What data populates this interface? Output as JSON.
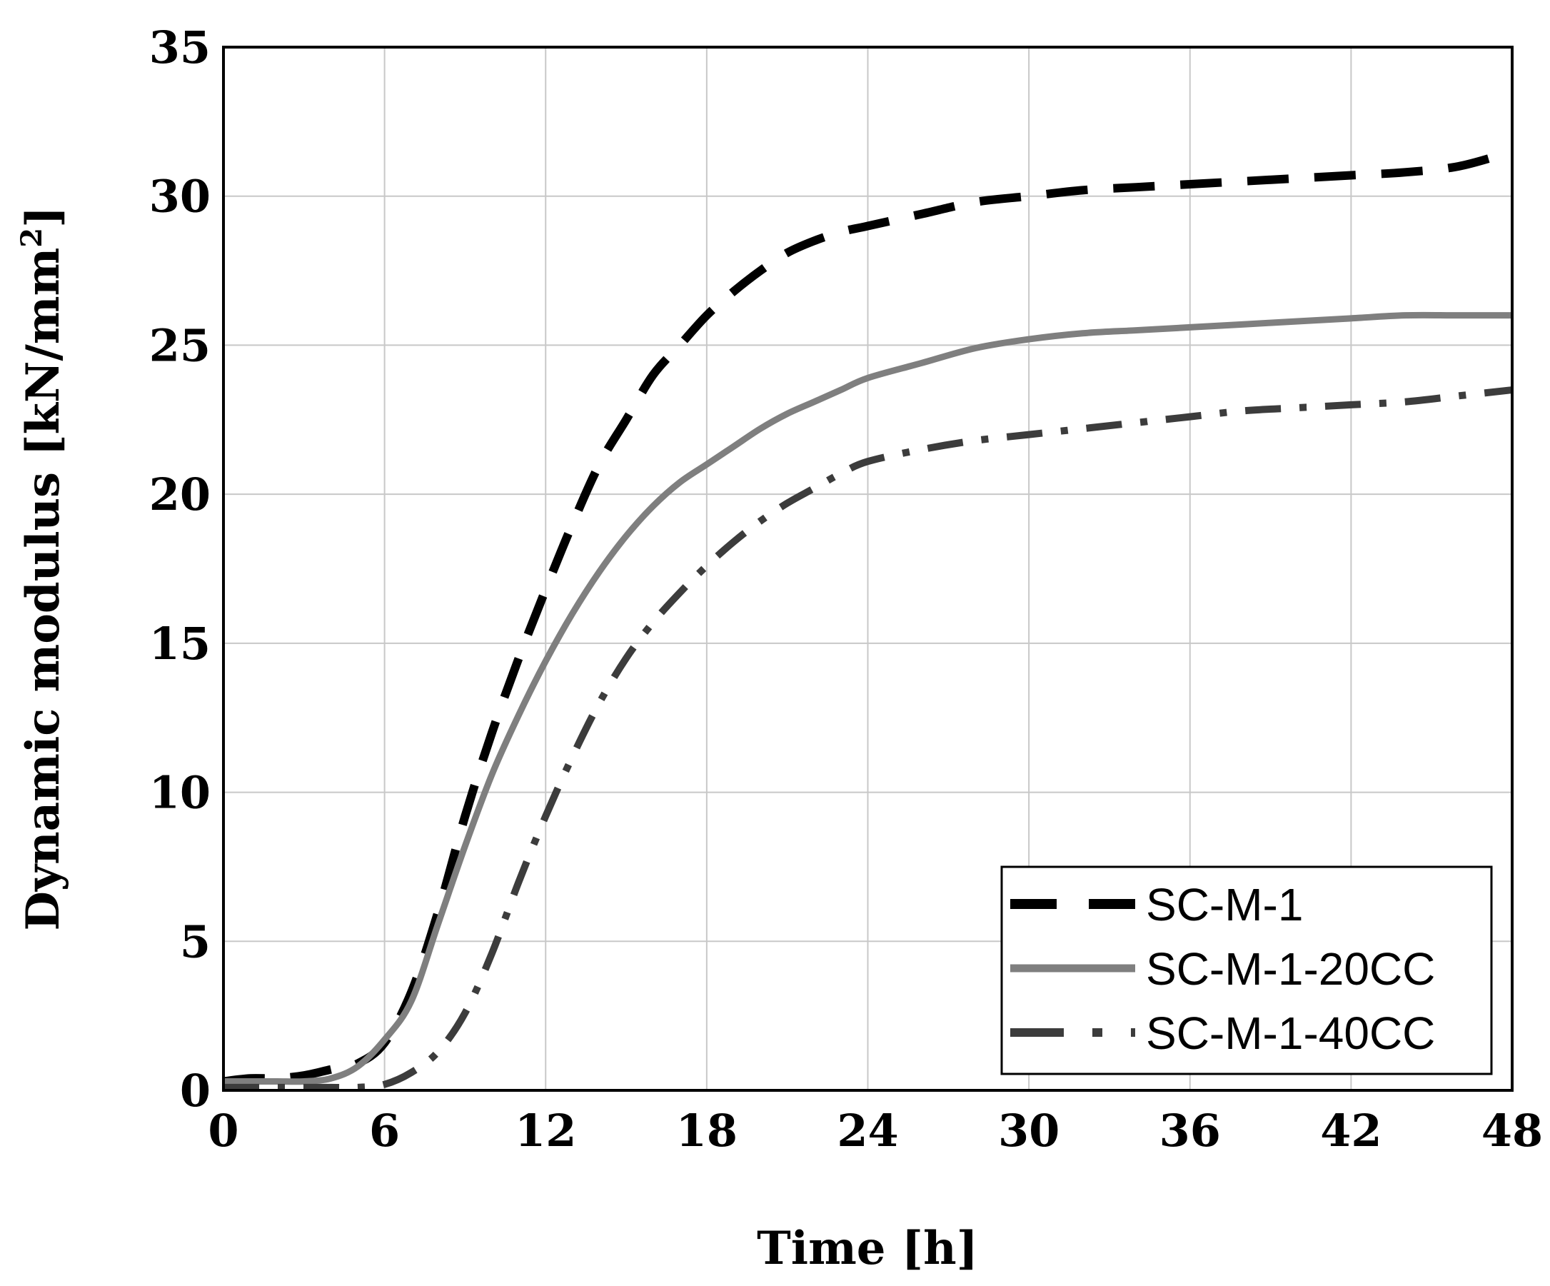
{
  "chart_data": {
    "type": "line",
    "title": "",
    "xlabel": "Time [h]",
    "ylabel_main": "Dynamic modulus [kN/mm",
    "ylabel_sup": "2",
    "ylabel_tail": "]",
    "xlim": [
      0,
      48
    ],
    "ylim": [
      0,
      35
    ],
    "xticks": [
      0,
      6,
      12,
      18,
      24,
      30,
      36,
      42,
      48
    ],
    "yticks": [
      0,
      5,
      10,
      15,
      20,
      25,
      30,
      35
    ],
    "grid": true,
    "legend_position": "bottom-right",
    "series": [
      {
        "name": "SC-M-1",
        "color": "#000000",
        "style": "dashed",
        "x": [
          0,
          1,
          2,
          3,
          4,
          5,
          6,
          7,
          8,
          9,
          10,
          11,
          12,
          13,
          14,
          15,
          16,
          17,
          18,
          19,
          20,
          21,
          22,
          23,
          24,
          26,
          28,
          30,
          32,
          34,
          36,
          38,
          40,
          42,
          44,
          46,
          48
        ],
        "y": [
          0.3,
          0.4,
          0.4,
          0.5,
          0.7,
          0.9,
          1.6,
          3.3,
          6.0,
          9.2,
          12.0,
          14.5,
          16.8,
          19.0,
          21.0,
          22.5,
          24.0,
          25.0,
          26.0,
          26.8,
          27.5,
          28.1,
          28.5,
          28.8,
          29.0,
          29.4,
          29.8,
          30.0,
          30.2,
          30.3,
          30.4,
          30.5,
          30.6,
          30.7,
          30.8,
          31.0,
          31.5
        ]
      },
      {
        "name": "SC-M-1-20CC",
        "color": "#7f7f7f",
        "style": "solid",
        "x": [
          0,
          1,
          2,
          3,
          4,
          5,
          6,
          7,
          8,
          9,
          10,
          11,
          12,
          13,
          14,
          15,
          16,
          17,
          18,
          19,
          20,
          21,
          22,
          23,
          24,
          26,
          28,
          30,
          32,
          34,
          36,
          38,
          40,
          42,
          44,
          46,
          48
        ],
        "y": [
          0.3,
          0.3,
          0.3,
          0.3,
          0.4,
          0.8,
          1.7,
          3.0,
          5.6,
          8.2,
          10.6,
          12.6,
          14.4,
          16.0,
          17.4,
          18.6,
          19.6,
          20.4,
          21.0,
          21.6,
          22.2,
          22.7,
          23.1,
          23.5,
          23.9,
          24.4,
          24.9,
          25.2,
          25.4,
          25.5,
          25.6,
          25.7,
          25.8,
          25.9,
          26.0,
          26.0,
          26.0
        ]
      },
      {
        "name": "SC-M-1-40CC",
        "color": "#3c3c3c",
        "style": "dashdot",
        "x": [
          0,
          1,
          2,
          3,
          4,
          5,
          6,
          7,
          8,
          9,
          10,
          11,
          12,
          13,
          14,
          15,
          16,
          17,
          18,
          19,
          20,
          21,
          22,
          23,
          24,
          26,
          28,
          30,
          32,
          34,
          36,
          38,
          40,
          42,
          44,
          46,
          48
        ],
        "y": [
          0.1,
          0.1,
          0.1,
          0.1,
          0.1,
          0.1,
          0.2,
          0.6,
          1.3,
          2.6,
          4.6,
          7.0,
          9.2,
          11.2,
          13.0,
          14.5,
          15.7,
          16.7,
          17.6,
          18.4,
          19.1,
          19.7,
          20.2,
          20.7,
          21.1,
          21.5,
          21.8,
          22.0,
          22.2,
          22.4,
          22.6,
          22.8,
          22.9,
          23.0,
          23.1,
          23.3,
          23.5
        ]
      }
    ]
  }
}
